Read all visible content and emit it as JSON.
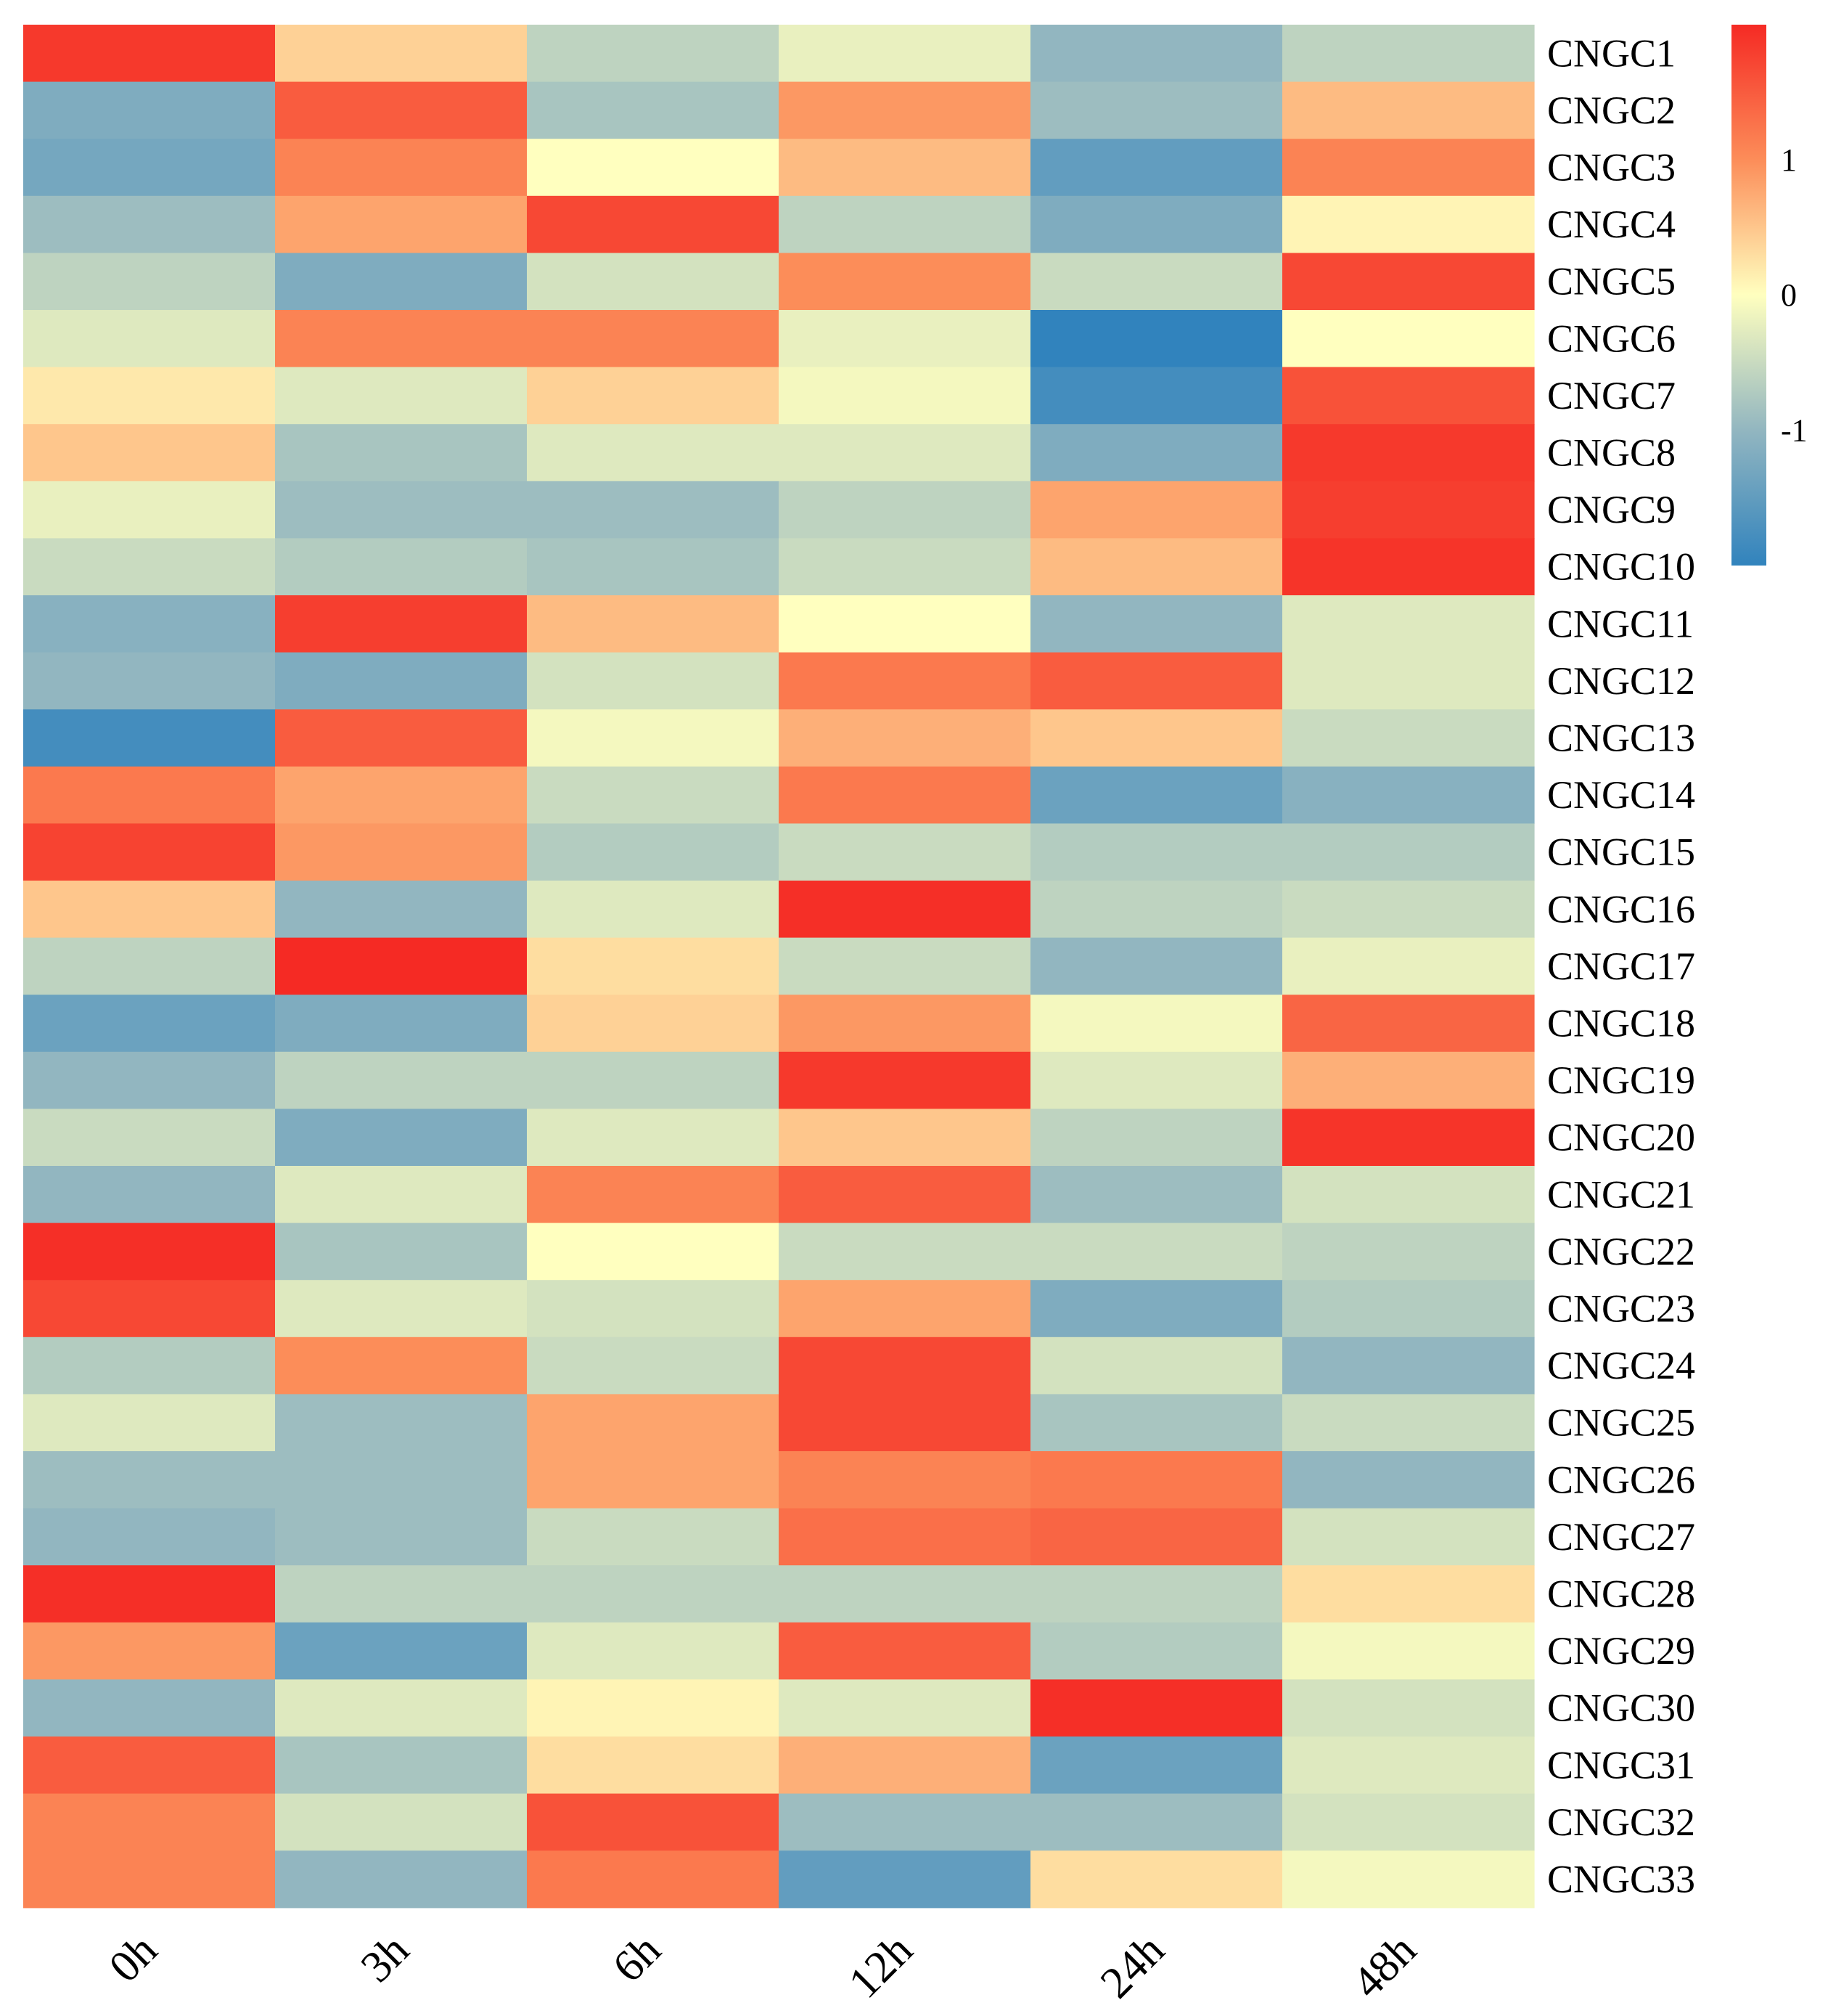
{
  "chart_data": {
    "type": "heatmap",
    "title": "",
    "xlabel": "",
    "ylabel": "",
    "columns": [
      "0h",
      "3h",
      "6h",
      "12h",
      "24h",
      "48h"
    ],
    "rows": [
      "CNGC1",
      "CNGC2",
      "CNGC3",
      "CNGC4",
      "CNGC5",
      "CNGC6",
      "CNGC7",
      "CNGC8",
      "CNGC9",
      "CNGC10",
      "CNGC11",
      "CNGC12",
      "CNGC13",
      "CNGC14",
      "CNGC15",
      "CNGC16",
      "CNGC17",
      "CNGC18",
      "CNGC19",
      "CNGC20",
      "CNGC21",
      "CNGC22",
      "CNGC23",
      "CNGC24",
      "CNGC25",
      "CNGC26",
      "CNGC27",
      "CNGC28",
      "CNGC29",
      "CNGC30",
      "CNGC31",
      "CNGC32",
      "CNGC33"
    ],
    "values": [
      [
        1.85,
        0.4,
        -0.6,
        -0.2,
        -1.0,
        -0.6
      ],
      [
        -1.2,
        1.5,
        -0.8,
        0.9,
        -0.9,
        0.6
      ],
      [
        -1.3,
        1.1,
        0.0,
        0.6,
        -1.5,
        1.1
      ],
      [
        -0.9,
        0.8,
        1.7,
        -0.6,
        -1.2,
        0.1
      ],
      [
        -0.6,
        -1.2,
        -0.4,
        1.0,
        -0.5,
        1.7
      ],
      [
        -0.3,
        1.1,
        1.1,
        -0.2,
        -2.0,
        0.0
      ],
      [
        0.2,
        -0.3,
        0.4,
        -0.1,
        -1.8,
        1.6
      ],
      [
        0.5,
        -0.8,
        -0.3,
        -0.3,
        -1.2,
        1.85
      ],
      [
        -0.2,
        -0.9,
        -0.9,
        -0.6,
        0.8,
        1.8
      ],
      [
        -0.5,
        -0.7,
        -0.8,
        -0.5,
        0.6,
        1.9
      ],
      [
        -1.1,
        1.8,
        0.6,
        0.0,
        -1.0,
        -0.3
      ],
      [
        -1.0,
        -1.2,
        -0.4,
        1.2,
        1.5,
        -0.3
      ],
      [
        -1.8,
        1.5,
        -0.1,
        0.7,
        0.5,
        -0.5
      ],
      [
        1.2,
        0.8,
        -0.5,
        1.2,
        -1.4,
        -1.1
      ],
      [
        1.75,
        0.9,
        -0.7,
        -0.5,
        -0.7,
        -0.7
      ],
      [
        0.5,
        -1.0,
        -0.3,
        1.95,
        -0.6,
        -0.5
      ],
      [
        -0.6,
        2.0,
        0.3,
        -0.5,
        -1.0,
        -0.2
      ],
      [
        -1.4,
        -1.2,
        0.4,
        0.9,
        -0.1,
        1.4
      ],
      [
        -1.0,
        -0.6,
        -0.6,
        1.85,
        -0.3,
        0.7
      ],
      [
        -0.5,
        -1.2,
        -0.3,
        0.5,
        -0.6,
        1.9
      ],
      [
        -1.0,
        -0.3,
        1.1,
        1.5,
        -0.9,
        -0.4
      ],
      [
        1.95,
        -0.8,
        0.0,
        -0.5,
        -0.5,
        -0.6
      ],
      [
        1.7,
        -0.3,
        -0.4,
        0.8,
        -1.2,
        -0.7
      ],
      [
        -0.7,
        1.0,
        -0.5,
        1.7,
        -0.4,
        -1.0
      ],
      [
        -0.3,
        -0.9,
        0.8,
        1.7,
        -0.8,
        -0.5
      ],
      [
        -0.9,
        -0.9,
        0.8,
        1.1,
        1.2,
        -1.0
      ],
      [
        -1.0,
        -0.9,
        -0.5,
        1.3,
        1.4,
        -0.4
      ],
      [
        1.95,
        -0.6,
        -0.6,
        -0.6,
        -0.6,
        0.3
      ],
      [
        0.9,
        -1.4,
        -0.3,
        1.5,
        -0.7,
        -0.1
      ],
      [
        -1.0,
        -0.3,
        0.1,
        -0.3,
        1.95,
        -0.4
      ],
      [
        1.5,
        -0.8,
        0.3,
        0.7,
        -1.4,
        -0.3
      ],
      [
        1.1,
        -0.4,
        1.6,
        -0.9,
        -0.9,
        -0.4
      ],
      [
        1.1,
        -1.0,
        1.2,
        -1.5,
        0.3,
        -0.1
      ]
    ],
    "color_scale": {
      "min": -2.0,
      "max": 2.0,
      "stops": [
        {
          "value": -2.0,
          "color": "#3183bd"
        },
        {
          "value": -1.0,
          "color": "#92b6c0"
        },
        {
          "value": 0.0,
          "color": "#ffffbf"
        },
        {
          "value": 1.0,
          "color": "#fc8d59"
        },
        {
          "value": 2.0,
          "color": "#f52a24"
        }
      ]
    },
    "legend": {
      "placement": "top-right",
      "ticks": [
        {
          "value": 1,
          "label": "1"
        },
        {
          "value": 0,
          "label": "0"
        },
        {
          "value": -1,
          "label": "-1"
        }
      ]
    }
  }
}
